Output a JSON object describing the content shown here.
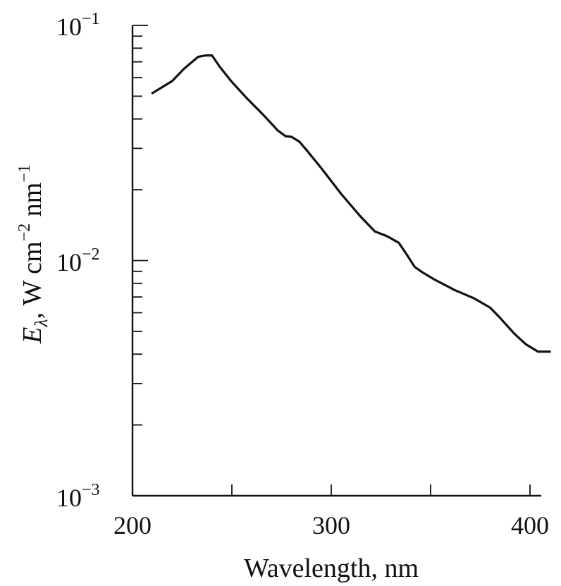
{
  "chart_data": {
    "type": "line",
    "title": "",
    "xlabel": "Wavelength, nm",
    "ylabel": {
      "symbol": "E",
      "subscript": "λ",
      "units": "W cm",
      "exp1": "−2",
      "units2": "nm",
      "exp2": "−1"
    },
    "y_scale": "log",
    "xlim": [
      200,
      410
    ],
    "ylim": [
      0.001,
      0.1
    ],
    "x_ticks": [
      200,
      250,
      300,
      350,
      400
    ],
    "x_tick_labels": [
      "200",
      "300",
      "400"
    ],
    "y_tick_labels": [
      {
        "base": "10",
        "exp": "−1",
        "value": 0.1
      },
      {
        "base": "10",
        "exp": "−2",
        "value": 0.01
      },
      {
        "base": "10",
        "exp": "−3",
        "value": 0.001
      }
    ],
    "grid": false,
    "series": [
      {
        "x": [
          210,
          220,
          226,
          233,
          237,
          240,
          244,
          250,
          258,
          266,
          273,
          277,
          280,
          284,
          288,
          295,
          305,
          315,
          322,
          328,
          334,
          338,
          342,
          346,
          352,
          362,
          372,
          380,
          385,
          392,
          398,
          404,
          410
        ],
        "y": [
          0.0515,
          0.058,
          0.0655,
          0.0735,
          0.0745,
          0.0745,
          0.0665,
          0.0575,
          0.0485,
          0.0415,
          0.0358,
          0.0338,
          0.0336,
          0.032,
          0.0292,
          0.0247,
          0.0192,
          0.0153,
          0.0133,
          0.0127,
          0.0119,
          0.0106,
          0.0094,
          0.0089,
          0.0083,
          0.0075,
          0.0069,
          0.0063,
          0.0057,
          0.0049,
          0.0044,
          0.0041,
          0.0041
        ]
      }
    ]
  }
}
